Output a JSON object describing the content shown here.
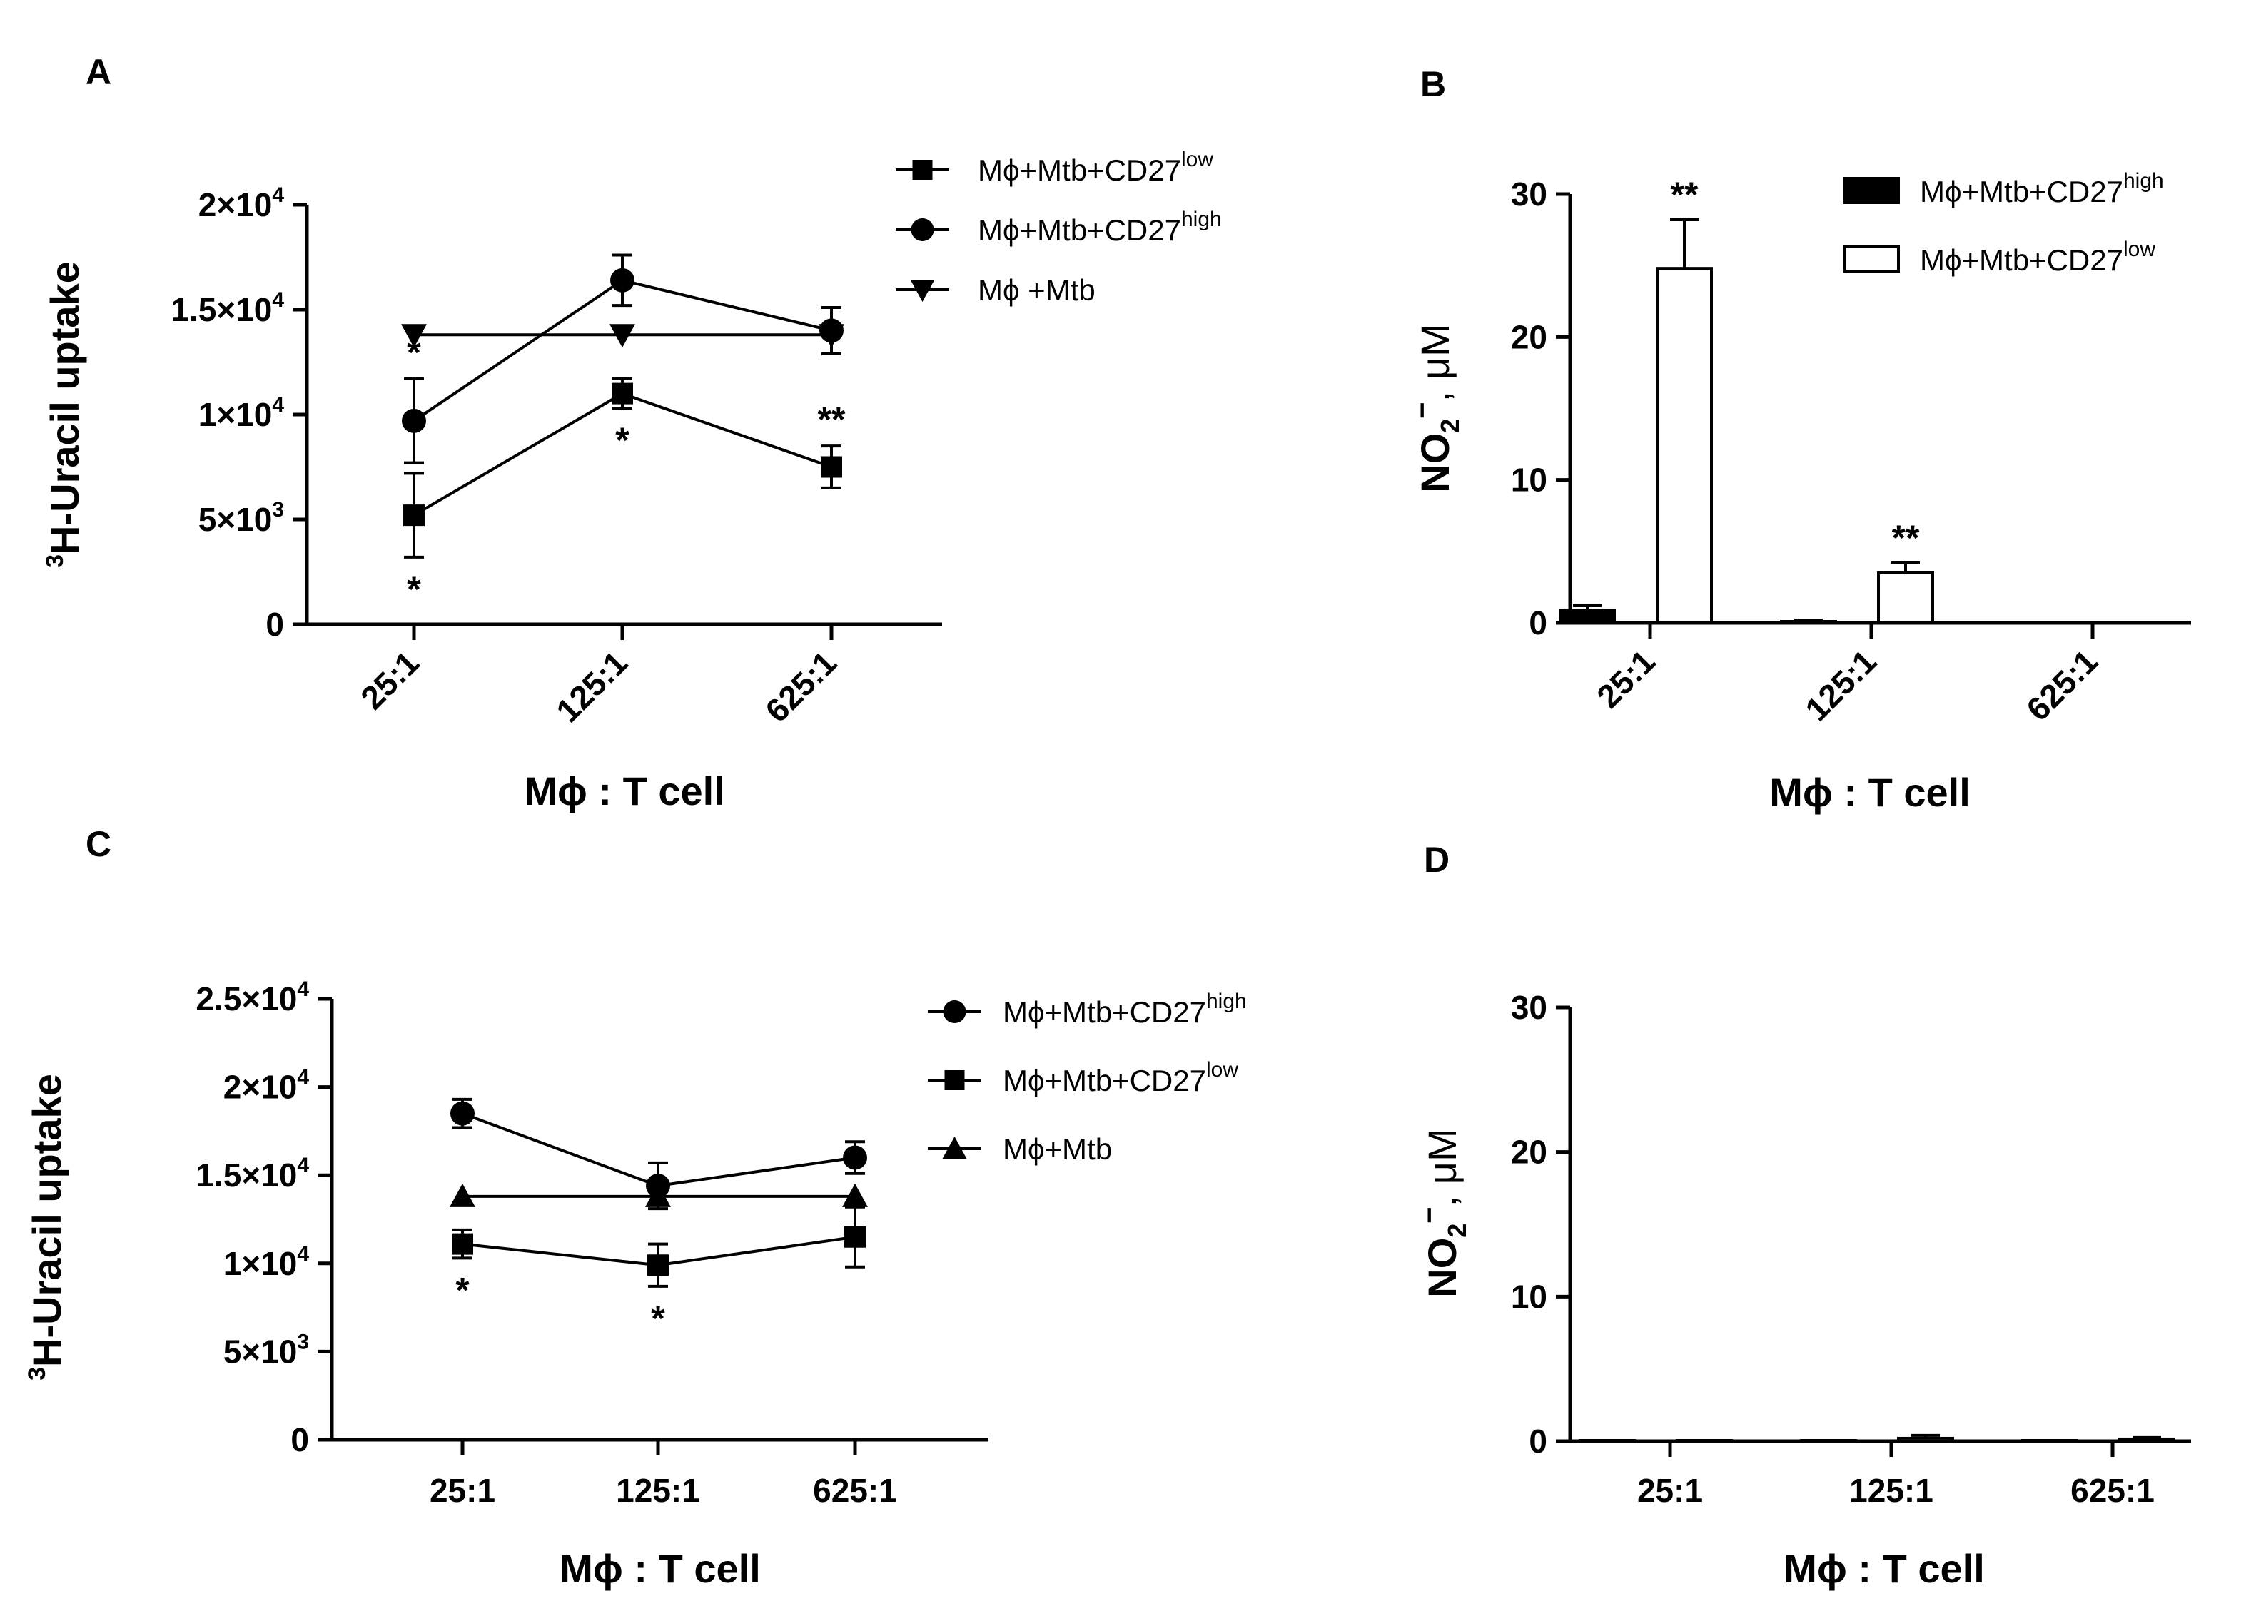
{
  "chart_data": [
    {
      "panel": "A",
      "type": "line",
      "ylabel_sup": "3",
      "ylabel_main": "H-Uracil uptake",
      "xlabel": "Mϕ : T cell",
      "categories": [
        "25:1",
        "125:1",
        "625:1"
      ],
      "ylim": [
        0,
        20000
      ],
      "yticks": [
        {
          "value": 0,
          "base": "0",
          "exp": ""
        },
        {
          "value": 5000,
          "base": "5×10",
          "exp": "3"
        },
        {
          "value": 10000,
          "base": "1×10",
          "exp": "4"
        },
        {
          "value": 15000,
          "base": "1.5×10",
          "exp": "4"
        },
        {
          "value": 20000,
          "base": "2×10",
          "exp": "4"
        }
      ],
      "series": [
        {
          "name": "Mϕ+Mtb+CD27",
          "name_sup": "low",
          "marker": "square",
          "values": [
            5200,
            11000,
            7500
          ],
          "errors": [
            2000,
            700,
            1000
          ],
          "significance": [
            {
              "index": 0,
              "text": "*",
              "pos": "below"
            },
            {
              "index": 1,
              "text": "*",
              "pos": "below"
            },
            {
              "index": 2,
              "text": "**",
              "pos": "above"
            }
          ]
        },
        {
          "name": "Mϕ+Mtb+CD27",
          "name_sup": "high",
          "marker": "circle",
          "values": [
            9700,
            16400,
            14000
          ],
          "errors": [
            2000,
            1200,
            1100
          ],
          "significance": [
            {
              "index": 0,
              "text": "*",
              "pos": "above"
            }
          ]
        },
        {
          "name": "Mϕ +Mtb",
          "name_sup": "",
          "marker": "triangle-down",
          "values": [
            13800,
            13800,
            13800
          ],
          "errors": [
            0,
            0,
            0
          ],
          "significance": []
        }
      ]
    },
    {
      "panel": "B",
      "type": "bar",
      "ylabel_main": "NO",
      "ylabel_sub": "2",
      "ylabel_sup": "−",
      "ylabel_unit": ", μM",
      "xlabel": "Mϕ : T cell",
      "categories": [
        "25:1",
        "125:1",
        "625:1"
      ],
      "ylim": [
        0,
        30
      ],
      "yticks": [
        0,
        10,
        20,
        30
      ],
      "series": [
        {
          "name": "Mϕ+Mtb+CD27",
          "name_sup": "high",
          "fill": "#000000",
          "values": [
            0.9,
            0.1,
            0
          ],
          "errors": [
            0.3,
            0.05,
            0
          ]
        },
        {
          "name": "Mϕ+Mtb+CD27",
          "name_sup": "low",
          "fill": "#ffffff",
          "values": [
            24.8,
            3.5,
            0
          ],
          "errors": [
            3.4,
            0.7,
            0
          ]
        }
      ],
      "significance": [
        {
          "series": 1,
          "index": 0,
          "text": "**"
        },
        {
          "series": 1,
          "index": 1,
          "text": "**"
        }
      ]
    },
    {
      "panel": "C",
      "type": "line",
      "ylabel_sup": "3",
      "ylabel_main": "H-Uracil uptake",
      "xlabel": "Mϕ : T cell",
      "categories": [
        "25:1",
        "125:1",
        "625:1"
      ],
      "ylim": [
        0,
        25000
      ],
      "yticks": [
        {
          "value": 0,
          "base": "0",
          "exp": ""
        },
        {
          "value": 5000,
          "base": "5×10",
          "exp": "3"
        },
        {
          "value": 10000,
          "base": "1×10",
          "exp": "4"
        },
        {
          "value": 15000,
          "base": "1.5×10",
          "exp": "4"
        },
        {
          "value": 20000,
          "base": "2×10",
          "exp": "4"
        },
        {
          "value": 25000,
          "base": "2.5×10",
          "exp": "4"
        }
      ],
      "series": [
        {
          "name": "Mϕ+Mtb+CD27",
          "name_sup": "high",
          "marker": "circle",
          "values": [
            18500,
            14400,
            16000
          ],
          "errors": [
            800,
            1300,
            900
          ],
          "significance": []
        },
        {
          "name": "Mϕ+Mtb+CD27",
          "name_sup": "low",
          "marker": "square",
          "values": [
            11100,
            9900,
            11500
          ],
          "errors": [
            800,
            1200,
            1700
          ],
          "significance": [
            {
              "index": 0,
              "text": "*",
              "pos": "below"
            },
            {
              "index": 1,
              "text": "*",
              "pos": "below"
            }
          ]
        },
        {
          "name": "Mϕ+Mtb",
          "name_sup": "",
          "marker": "triangle-up",
          "values": [
            13800,
            13800,
            13800
          ],
          "errors": [
            0,
            0,
            0
          ],
          "significance": []
        }
      ]
    },
    {
      "panel": "D",
      "type": "bar",
      "ylabel_main": "NO",
      "ylabel_sub": "2",
      "ylabel_sup": "−",
      "ylabel_unit": ", μM",
      "xlabel": "Mϕ : T cell",
      "categories": [
        "25:1",
        "125:1",
        "625:1"
      ],
      "ylim": [
        0,
        30
      ],
      "yticks": [
        0,
        10,
        20,
        30
      ],
      "series": [
        {
          "name": "",
          "name_sup": "",
          "fill": "#000000",
          "values": [
            0.05,
            0.05,
            0.05
          ],
          "errors": [
            0,
            0,
            0
          ]
        },
        {
          "name": "",
          "name_sup": "",
          "fill": "#ffffff",
          "values": [
            0.05,
            0.2,
            0.15
          ],
          "errors": [
            0,
            0.2,
            0.1
          ]
        }
      ],
      "significance": []
    }
  ]
}
